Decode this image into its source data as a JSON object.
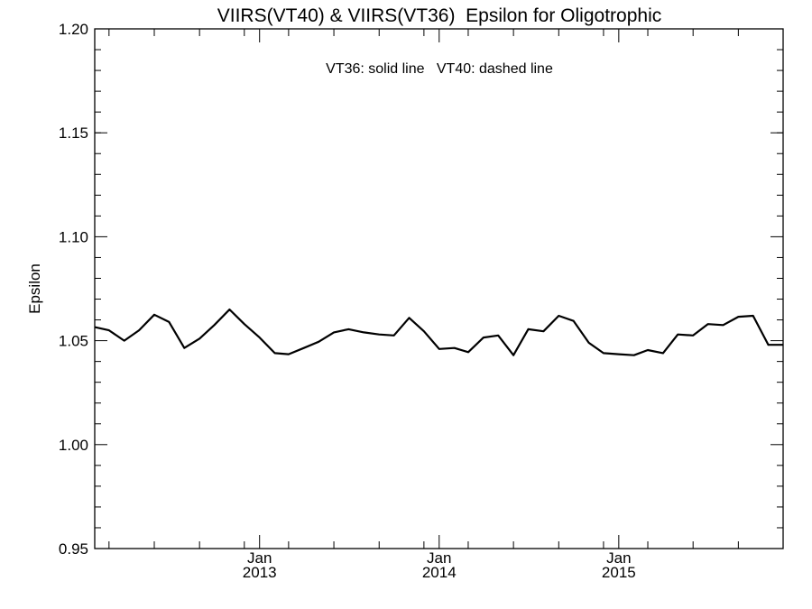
{
  "chart_data": {
    "type": "line",
    "title": "VIIRS(VT40) & VIIRS(VT36)  Epsilon for Oligotrophic",
    "annotation": "VT36: solid line   VT40: dashed line",
    "xlabel": "",
    "ylabel": "Epsilon",
    "ylim": [
      0.95,
      1.2
    ],
    "xlim": [
      "2012-02-01",
      "2015-12-01"
    ],
    "yticks": [
      "0.95",
      "1.00",
      "1.05",
      "1.10",
      "1.15",
      "1.20"
    ],
    "xticks": [
      {
        "month": "Jan",
        "year": "2013",
        "date": "2013-01-01"
      },
      {
        "month": "Jan",
        "year": "2014",
        "date": "2014-01-01"
      },
      {
        "month": "Jan",
        "year": "2015",
        "date": "2015-01-01"
      }
    ],
    "x_minor_tick_interval_months": 3,
    "grid": false,
    "series": [
      {
        "name": "VT36",
        "style": "solid",
        "color": "#000000",
        "x": [
          "2012-02-01",
          "2012-03-01",
          "2012-04-01",
          "2012-05-01",
          "2012-06-01",
          "2012-07-01",
          "2012-08-01",
          "2012-09-01",
          "2012-10-01",
          "2012-11-01",
          "2012-12-01",
          "2013-01-01",
          "2013-02-01",
          "2013-03-01",
          "2013-04-01",
          "2013-05-01",
          "2013-06-01",
          "2013-07-01",
          "2013-08-01",
          "2013-09-01",
          "2013-10-01",
          "2013-11-01",
          "2013-12-01",
          "2014-01-01",
          "2014-02-01",
          "2014-03-01",
          "2014-04-01",
          "2014-05-01",
          "2014-06-01",
          "2014-07-01",
          "2014-08-01",
          "2014-09-01",
          "2014-10-01",
          "2014-11-01",
          "2014-12-01",
          "2015-01-01",
          "2015-02-01",
          "2015-03-01",
          "2015-04-01",
          "2015-05-01",
          "2015-06-01",
          "2015-07-01",
          "2015-08-01",
          "2015-09-01",
          "2015-10-01",
          "2015-11-01",
          "2015-12-01"
        ],
        "values": [
          1.0565,
          1.055,
          1.05,
          1.055,
          1.0625,
          1.059,
          1.0465,
          1.051,
          1.0575,
          1.065,
          1.058,
          1.0515,
          1.044,
          1.0435,
          1.0465,
          1.0495,
          1.054,
          1.0555,
          1.054,
          1.053,
          1.0525,
          1.061,
          1.0545,
          1.046,
          1.0465,
          1.0445,
          1.0515,
          1.0525,
          1.043,
          1.0555,
          1.0545,
          1.062,
          1.0595,
          1.049,
          1.044,
          1.0435,
          1.043,
          1.0455,
          1.044,
          1.053,
          1.0525,
          1.058,
          1.0575,
          1.0615,
          1.062,
          1.048,
          1.048
        ]
      }
    ]
  }
}
